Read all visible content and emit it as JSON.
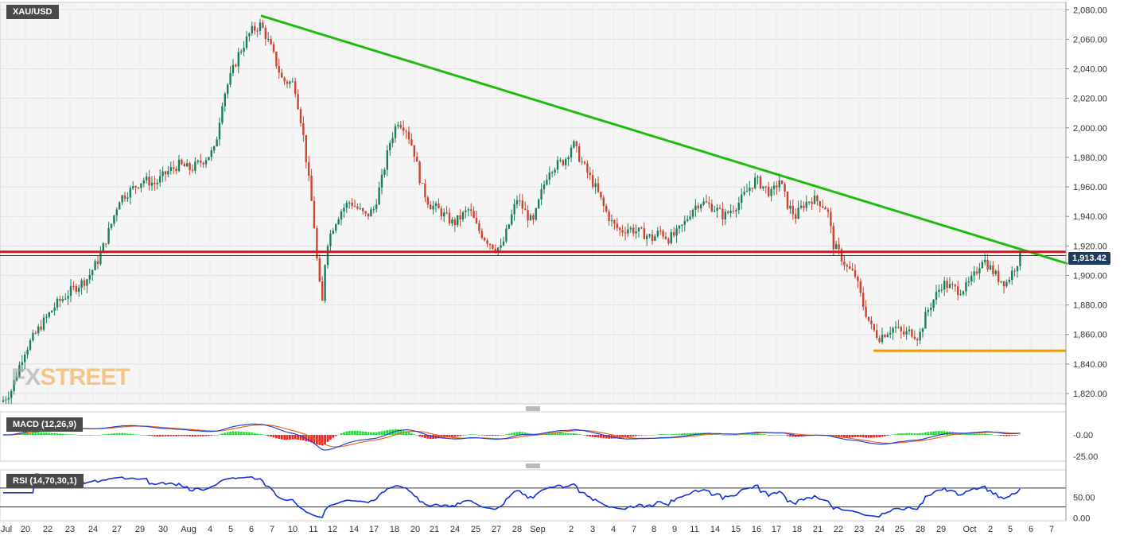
{
  "chart_data": [
    {
      "type": "candlestick",
      "symbol": "XAU/USD",
      "y_ticks": [
        "2,080.00",
        "2,060.00",
        "2,040.00",
        "2,020.00",
        "2,000.00",
        "1,980.00",
        "1,960.00",
        "1,940.00",
        "1,920.00",
        "1,900.00",
        "1,880.00",
        "1,860.00",
        "1,840.00",
        "1,820.00"
      ],
      "y_tick_values": [
        2080,
        2060,
        2040,
        2020,
        2000,
        1980,
        1960,
        1940,
        1920,
        1900,
        1880,
        1860,
        1840,
        1820
      ],
      "ylim": [
        1813,
        2085
      ],
      "x_ticks": [
        "Jul",
        "20",
        "22",
        "23",
        "24",
        "27",
        "29",
        "30",
        "Aug",
        "4",
        "5",
        "6",
        "7",
        "10",
        "11",
        "12",
        "14",
        "17",
        "18",
        "20",
        "21",
        "24",
        "25",
        "27",
        "28",
        "Sep",
        "2",
        "3",
        "4",
        "7",
        "8",
        "9",
        "11",
        "14",
        "15",
        "16",
        "17",
        "18",
        "21",
        "22",
        "23",
        "24",
        "25",
        "28",
        "29",
        "Oct",
        "2",
        "5",
        "6",
        "7"
      ],
      "last_price": 1913.42,
      "last_price_label": "1,913.42",
      "close_path": [
        [
          0,
          1813
        ],
        [
          14,
          1822
        ],
        [
          30,
          1848
        ],
        [
          50,
          1865
        ],
        [
          70,
          1880
        ],
        [
          90,
          1890
        ],
        [
          110,
          1898
        ],
        [
          125,
          1912
        ],
        [
          140,
          1935
        ],
        [
          150,
          1952
        ],
        [
          165,
          1958
        ],
        [
          180,
          1965
        ],
        [
          195,
          1962
        ],
        [
          210,
          1970
        ],
        [
          225,
          1975
        ],
        [
          240,
          1972
        ],
        [
          255,
          1978
        ],
        [
          270,
          1985
        ],
        [
          280,
          2020
        ],
        [
          290,
          2035
        ],
        [
          300,
          2050
        ],
        [
          315,
          2065
        ],
        [
          328,
          2070
        ],
        [
          340,
          2055
        ],
        [
          355,
          2032
        ],
        [
          370,
          2030
        ],
        [
          380,
          2000
        ],
        [
          388,
          1965
        ],
        [
          394,
          1940
        ],
        [
          400,
          1900
        ],
        [
          405,
          1880
        ],
        [
          410,
          1920
        ],
        [
          420,
          1935
        ],
        [
          430,
          1945
        ],
        [
          440,
          1950
        ],
        [
          450,
          1945
        ],
        [
          460,
          1940
        ],
        [
          470,
          1945
        ],
        [
          480,
          1965
        ],
        [
          490,
          1990
        ],
        [
          500,
          2005
        ],
        [
          510,
          2000
        ],
        [
          520,
          1985
        ],
        [
          530,
          1960
        ],
        [
          540,
          1948
        ],
        [
          550,
          1945
        ],
        [
          560,
          1940
        ],
        [
          570,
          1935
        ],
        [
          580,
          1940
        ],
        [
          590,
          1945
        ],
        [
          600,
          1932
        ],
        [
          610,
          1925
        ],
        [
          620,
          1920
        ],
        [
          630,
          1918
        ],
        [
          640,
          1935
        ],
        [
          650,
          1952
        ],
        [
          660,
          1943
        ],
        [
          670,
          1935
        ],
        [
          680,
          1955
        ],
        [
          690,
          1972
        ],
        [
          700,
          1975
        ],
        [
          710,
          1978
        ],
        [
          720,
          1990
        ],
        [
          730,
          1978
        ],
        [
          740,
          1968
        ],
        [
          750,
          1958
        ],
        [
          760,
          1945
        ],
        [
          770,
          1935
        ],
        [
          780,
          1930
        ],
        [
          790,
          1932
        ],
        [
          800,
          1930
        ],
        [
          810,
          1928
        ],
        [
          820,
          1925
        ],
        [
          830,
          1930
        ],
        [
          840,
          1925
        ],
        [
          850,
          1928
        ],
        [
          860,
          1935
        ],
        [
          870,
          1945
        ],
        [
          880,
          1950
        ],
        [
          890,
          1948
        ],
        [
          900,
          1945
        ],
        [
          910,
          1940
        ],
        [
          920,
          1945
        ],
        [
          930,
          1950
        ],
        [
          940,
          1958
        ],
        [
          950,
          1965
        ],
        [
          960,
          1960
        ],
        [
          970,
          1955
        ],
        [
          980,
          1965
        ],
        [
          990,
          1948
        ],
        [
          1000,
          1940
        ],
        [
          1010,
          1948
        ],
        [
          1020,
          1952
        ],
        [
          1030,
          1950
        ],
        [
          1040,
          1945
        ],
        [
          1048,
          1920
        ],
        [
          1055,
          1915
        ],
        [
          1065,
          1905
        ],
        [
          1075,
          1900
        ],
        [
          1085,
          1880
        ],
        [
          1095,
          1865
        ],
        [
          1105,
          1858
        ],
        [
          1115,
          1862
        ],
        [
          1125,
          1865
        ],
        [
          1135,
          1860
        ],
        [
          1145,
          1862
        ],
        [
          1155,
          1858
        ],
        [
          1165,
          1875
        ],
        [
          1175,
          1885
        ],
        [
          1185,
          1895
        ],
        [
          1195,
          1892
        ],
        [
          1205,
          1890
        ],
        [
          1215,
          1892
        ],
        [
          1225,
          1900
        ],
        [
          1235,
          1912
        ],
        [
          1245,
          1905
        ],
        [
          1255,
          1898
        ],
        [
          1265,
          1895
        ],
        [
          1275,
          1905
        ],
        [
          1283,
          1913.42
        ]
      ],
      "annotations": [
        {
          "name": "descending trendline",
          "color": "#22bb11",
          "from": [
            328,
            2076
          ],
          "to": [
            1342,
            1908
          ]
        },
        {
          "name": "horizontal resistance",
          "color": "#dd1111",
          "value": 1916
        },
        {
          "name": "horizontal support",
          "color": "#ee9900",
          "value": 1849,
          "x_from": 1098
        }
      ],
      "colors": {
        "up": "#1a7f5a",
        "down": "#cc4433"
      }
    },
    {
      "type": "macd",
      "label": "MACD (12,26,9)",
      "y_ticks": [
        "-0.00",
        "-25.00"
      ],
      "series": [
        {
          "name": "macd",
          "color": "#2244dd"
        },
        {
          "name": "signal",
          "color": "#ee6622"
        },
        {
          "name": "histogram",
          "colors": [
            "#22dd33",
            "#ee2222"
          ]
        }
      ]
    },
    {
      "type": "rsi",
      "label": "RSI (14,70,30,1)",
      "y_ticks": [
        "50.00",
        "0.00"
      ],
      "levels": [
        70,
        30
      ],
      "color": "#1133dd"
    }
  ],
  "brand": {
    "part1": "FX",
    "part2": "STREET"
  }
}
